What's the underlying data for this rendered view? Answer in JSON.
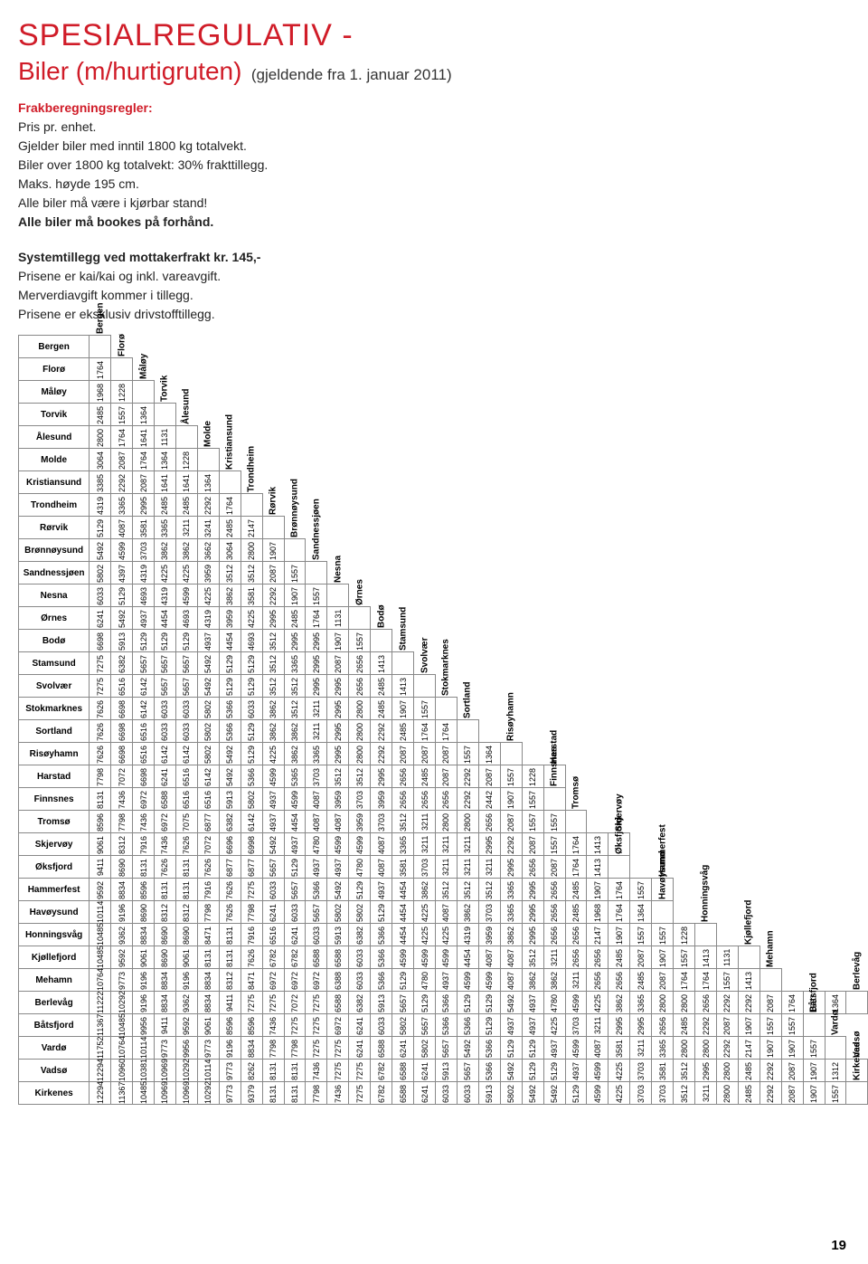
{
  "title": "SPESIALREGULATIV -",
  "subtitle": "Biler (m/hurtigruten)",
  "gjeldende": "(gjeldende fra 1. januar 2011)",
  "rules": {
    "heading": "Frakberegningsregler:",
    "lines": [
      "Pris pr. enhet.",
      "Gjelder biler med inntil 1800 kg totalvekt.",
      "Biler over 1800 kg totalvekt: 30% frakttillegg.",
      "Maks. høyde 195 cm.",
      "Alle biler må være i kjørbar stand!"
    ],
    "bold_line": "Alle biler må bookes på forhånd.",
    "block2_heading": "Systemtillegg ved mottakerfrakt kr. 145,-",
    "block2_lines": [
      "Prisene er kai/kai og inkl. vareavgift.",
      "Merverdiavgift kommer i tillegg.",
      "Prisene er eksklusiv drivstofftillegg."
    ]
  },
  "ports": [
    "Bergen",
    "Florø",
    "Måløy",
    "Torvik",
    "Ålesund",
    "Molde",
    "Kristiansund",
    "Trondheim",
    "Rørvik",
    "Brønnøysund",
    "Sandnessjøen",
    "Nesna",
    "Ørnes",
    "Bodø",
    "Stamsund",
    "Svolvær",
    "Stokmarknes",
    "Sortland",
    "Risøyhamn",
    "Harstad",
    "Finnsnes",
    "Tromsø",
    "Skjervøy",
    "Øksfjord",
    "Hammerfest",
    "Havøysund",
    "Honningsvåg",
    "Kjøllefjord",
    "Mehamn",
    "Berlevåg",
    "Båtsfjord",
    "Vardø",
    "Vadsø",
    "Kirkenes"
  ],
  "matrix": [
    [
      1764
    ],
    [
      1968,
      1228
    ],
    [
      2485,
      1557,
      1364
    ],
    [
      2800,
      1764,
      1641,
      1131
    ],
    [
      3064,
      2087,
      1764,
      1364,
      1228
    ],
    [
      3385,
      2292,
      2087,
      1641,
      1641,
      1364
    ],
    [
      4319,
      3365,
      2995,
      2485,
      2485,
      2292,
      1764
    ],
    [
      5129,
      4087,
      3581,
      3365,
      3211,
      3241,
      2485,
      2147
    ],
    [
      5492,
      4599,
      3703,
      3862,
      3862,
      3662,
      3064,
      2800,
      1907
    ],
    [
      5802,
      4397,
      4319,
      4225,
      4225,
      3959,
      3512,
      3512,
      2087,
      1557
    ],
    [
      6033,
      5129,
      4693,
      4319,
      4599,
      4225,
      3862,
      3581,
      2292,
      1907,
      1557
    ],
    [
      6241,
      5492,
      4937,
      4454,
      4693,
      4319,
      3959,
      4225,
      2995,
      2485,
      1764,
      1131
    ],
    [
      6698,
      5913,
      5129,
      5129,
      5129,
      4937,
      4454,
      4693,
      3512,
      2995,
      2995,
      1907,
      1557
    ],
    [
      7275,
      6382,
      5657,
      5657,
      5657,
      5492,
      5129,
      5129,
      3512,
      3365,
      2995,
      2087,
      2656,
      1413
    ],
    [
      7275,
      6516,
      6142,
      5657,
      5657,
      5492,
      5129,
      5129,
      3512,
      3512,
      2995,
      2995,
      2656,
      2485,
      1413
    ],
    [
      7626,
      6698,
      6142,
      6033,
      6033,
      5802,
      5366,
      6033,
      3862,
      3512,
      3211,
      2995,
      2800,
      2485,
      1907,
      1557
    ],
    [
      7626,
      6698,
      6516,
      6033,
      6033,
      5802,
      5366,
      5129,
      3862,
      3862,
      3211,
      2995,
      2800,
      2292,
      2485,
      1764,
      1764
    ],
    [
      7626,
      6698,
      6516,
      6142,
      6142,
      5802,
      5492,
      5129,
      4225,
      3862,
      3365,
      2995,
      2800,
      2292,
      2087,
      2087,
      2087,
      1557,
      1364
    ],
    [
      7798,
      7072,
      6698,
      6241,
      6516,
      6142,
      5492,
      5366,
      4599,
      5365,
      3703,
      3512,
      3512,
      2995,
      2656,
      2485,
      2087,
      2292,
      2087,
      1557,
      1228
    ],
    [
      8131,
      7436,
      6972,
      6588,
      6516,
      6516,
      5913,
      5802,
      4937,
      4599,
      4087,
      3959,
      3703,
      3959,
      2656,
      2656,
      2656,
      2292,
      2442,
      1907,
      1557
    ],
    [
      8596,
      7798,
      7436,
      6972,
      7075,
      6877,
      6382,
      6142,
      4937,
      4454,
      4087,
      4087,
      3959,
      3703,
      3512,
      3211,
      2800,
      2800,
      2656,
      2087,
      1557,
      1557
    ],
    [
      9061,
      8312,
      7916,
      7436,
      7626,
      7072,
      6696,
      6998,
      5492,
      4937,
      4780,
      4599,
      4599,
      4087,
      3365,
      3211,
      3211,
      3211,
      2995,
      2292,
      2087,
      1557,
      1764,
      1413
    ],
    [
      9411,
      8690,
      8131,
      7626,
      8131,
      7626,
      6877,
      6877,
      5657,
      5129,
      4937,
      4937,
      4780,
      4087,
      3581,
      3703,
      3211,
      3211,
      3211,
      2995,
      2656,
      2087,
      1764,
      1413
    ],
    [
      9592,
      8834,
      8596,
      8131,
      8131,
      7916,
      7626,
      7275,
      6033,
      5657,
      5366,
      5492,
      5129,
      4937,
      4454,
      3862,
      3512,
      3512,
      3512,
      3365,
      2995,
      2656,
      2485,
      1907,
      1764,
      1557
    ],
    [
      10114,
      9196,
      8690,
      8312,
      8312,
      7798,
      7626,
      7798,
      6241,
      6033,
      5657,
      5802,
      5802,
      5129,
      4454,
      4225,
      4087,
      3862,
      3703,
      3365,
      2995,
      2656,
      2485,
      1968,
      1764,
      1364
    ],
    [
      10485,
      9362,
      8834,
      8690,
      8690,
      8471,
      8131,
      7916,
      6516,
      6241,
      6033,
      5913,
      6382,
      5366,
      4454,
      4225,
      4225,
      4319,
      3959,
      3862,
      2995,
      2656,
      2656,
      2147,
      1907,
      1557,
      1557,
      1228
    ],
    [
      10485,
      9592,
      9061,
      8690,
      9061,
      8131,
      8131,
      7626,
      6782,
      6782,
      6588,
      6588,
      6033,
      5366,
      4599,
      4599,
      4599,
      4454,
      4087,
      4087,
      3512,
      3211,
      2656,
      2656,
      2485,
      2087,
      1907,
      1557,
      1413,
      1131
    ],
    [
      10764,
      9773,
      9196,
      8834,
      9196,
      8834,
      8312,
      8471,
      6972,
      6972,
      6972,
      6388,
      6033,
      5366,
      5129,
      4780,
      4937,
      4599,
      4599,
      4087,
      3862,
      3862,
      3211,
      2656,
      2656,
      2485,
      2087,
      1764,
      1764,
      1557,
      1413
    ],
    [
      11222,
      10292,
      9196,
      8834,
      9362,
      8834,
      9411,
      7275,
      7275,
      7072,
      7275,
      6588,
      6382,
      5913,
      5657,
      5129,
      5366,
      5129,
      5129,
      5492,
      4937,
      4780,
      4599,
      4225,
      3862,
      3365,
      2800,
      2800,
      2656,
      2292,
      2292,
      2087,
      1764,
      1557,
      1364
    ],
    [
      11367,
      10485,
      9956,
      9411,
      9592,
      9061,
      8596,
      8596,
      7436,
      7275,
      7275,
      6972,
      6241,
      6033,
      5802,
      5657,
      5366,
      5366,
      5129,
      4937,
      4937,
      4225,
      3703,
      3211,
      2995,
      2995,
      2656,
      2485,
      2292,
      2087,
      1907,
      1557,
      1557
    ],
    [
      11752,
      10764,
      10114,
      9773,
      9956,
      9773,
      9196,
      8834,
      7798,
      7798,
      7275,
      7275,
      6241,
      6588,
      6241,
      5802,
      5657,
      5492,
      5366,
      5129,
      5129,
      4937,
      4599,
      4087,
      3581,
      3211,
      3365,
      2800,
      2800,
      2292,
      2147,
      1907,
      1907,
      1557
    ],
    [
      12294,
      10960,
      10381,
      10969,
      10292,
      10114,
      9773,
      8262,
      8131,
      8131,
      7436,
      7275,
      7275,
      6782,
      6588,
      6241,
      5913,
      5657,
      5366,
      5492,
      5129,
      5129,
      4937,
      4599,
      4225,
      3703,
      3581,
      3512,
      2995,
      2800,
      2485,
      2292,
      2087,
      1907,
      1312
    ],
    [
      12294,
      11367,
      10485,
      10969,
      10969,
      10292,
      9773,
      9379,
      8131,
      8131,
      7798,
      7436,
      7275,
      6782,
      6588,
      6241,
      6033,
      6033,
      5913,
      5802,
      5492,
      5492,
      5129,
      4599,
      4225,
      3703,
      3703,
      3512,
      3211,
      2800,
      2485,
      2292,
      2087,
      1907,
      1557
    ]
  ],
  "page_number": "19",
  "colors": {
    "red": "#d01c28",
    "border": "#888888",
    "text": "#222222"
  }
}
